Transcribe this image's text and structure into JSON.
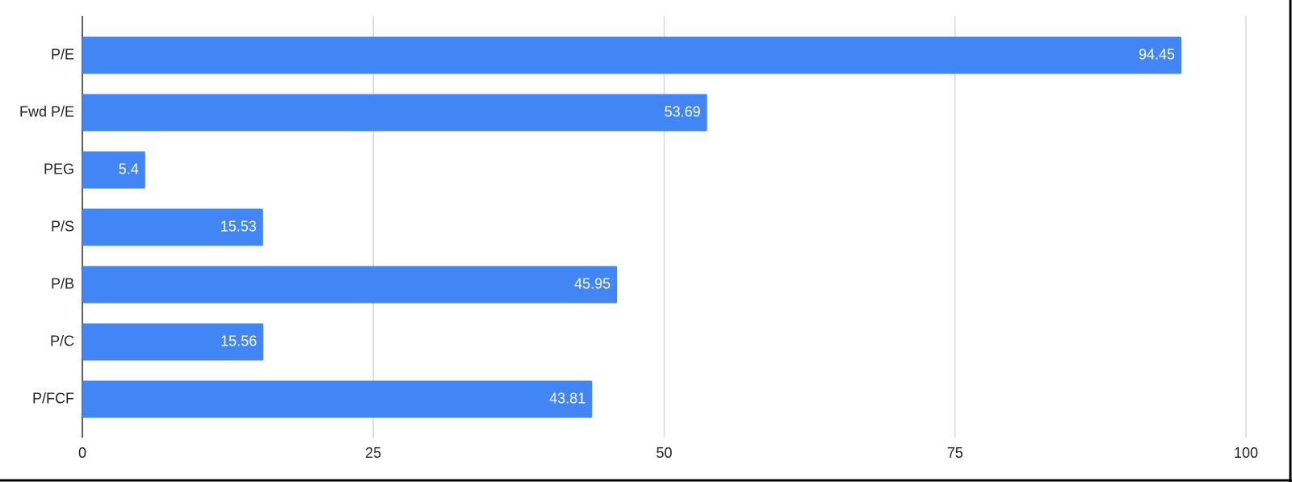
{
  "chart_data": {
    "type": "bar",
    "orientation": "horizontal",
    "categories": [
      "P/E",
      "Fwd P/E",
      "PEG",
      "P/S",
      "P/B",
      "P/C",
      "P/FCF"
    ],
    "values": [
      94.45,
      53.69,
      5.4,
      15.53,
      45.95,
      15.56,
      43.81
    ],
    "color": "#4285f4",
    "xlim": [
      0,
      100
    ],
    "xticks": [
      0,
      25,
      50,
      75,
      100
    ],
    "grid": true
  }
}
